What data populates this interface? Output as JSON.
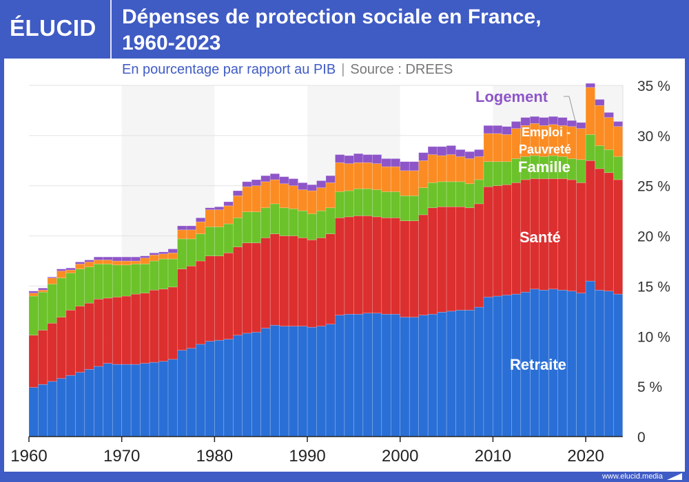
{
  "header": {
    "logo": "ÉLUCID",
    "title_line1": "Dépenses de protection sociale en France,",
    "title_line2": "1960-2023",
    "subtitle": "En pourcentage par rapport au PIB",
    "separator": "|",
    "source": "Source : DREES"
  },
  "footer": {
    "url": "www.elucid.media"
  },
  "chart_data": {
    "type": "bar",
    "stacked": true,
    "title": "Dépenses de protection sociale en France, 1960-2023",
    "subtitle": "En pourcentage par rapport au PIB",
    "xlabel": "",
    "ylabel": "",
    "ylim": [
      0,
      35
    ],
    "yticks": [
      "0",
      "5 %",
      "10 %",
      "15 %",
      "20 %",
      "25 %",
      "30 %",
      "35 %"
    ],
    "xticks": [
      "1960",
      "1970",
      "1980",
      "1990",
      "2000",
      "2010",
      "2020"
    ],
    "grid": true,
    "legend": "inline labels on the right",
    "x": [
      1960,
      1961,
      1962,
      1963,
      1964,
      1965,
      1966,
      1967,
      1968,
      1969,
      1970,
      1971,
      1972,
      1973,
      1974,
      1975,
      1976,
      1977,
      1978,
      1979,
      1980,
      1981,
      1982,
      1983,
      1984,
      1985,
      1986,
      1987,
      1988,
      1989,
      1990,
      1991,
      1992,
      1993,
      1994,
      1995,
      1996,
      1997,
      1998,
      1999,
      2000,
      2001,
      2002,
      2003,
      2004,
      2005,
      2006,
      2007,
      2008,
      2009,
      2010,
      2011,
      2012,
      2013,
      2014,
      2015,
      2016,
      2017,
      2018,
      2019,
      2020,
      2021,
      2022,
      2023
    ],
    "series": [
      {
        "name": "Retraite",
        "color": "#2a6fd6",
        "values": [
          4.9,
          5.2,
          5.5,
          5.8,
          6.1,
          6.4,
          6.7,
          7.0,
          7.3,
          7.2,
          7.2,
          7.2,
          7.3,
          7.4,
          7.5,
          7.7,
          8.6,
          8.8,
          9.2,
          9.5,
          9.6,
          9.7,
          10.1,
          10.3,
          10.4,
          10.8,
          11.1,
          11.0,
          11.0,
          11.0,
          10.9,
          11.0,
          11.2,
          12.1,
          12.2,
          12.2,
          12.3,
          12.3,
          12.2,
          12.2,
          11.9,
          11.9,
          12.1,
          12.2,
          12.4,
          12.5,
          12.6,
          12.6,
          12.9,
          13.9,
          14.0,
          14.1,
          14.2,
          14.4,
          14.7,
          14.6,
          14.7,
          14.6,
          14.5,
          14.3,
          15.5,
          14.6,
          14.5,
          14.2
        ]
      },
      {
        "name": "Santé",
        "color": "#dc2f2f",
        "values": [
          5.2,
          5.4,
          5.8,
          6.1,
          6.5,
          6.6,
          6.6,
          6.7,
          6.5,
          6.7,
          6.8,
          7.0,
          7.0,
          7.2,
          7.2,
          7.2,
          8.1,
          8.2,
          8.3,
          8.5,
          8.4,
          8.6,
          8.8,
          9.0,
          8.9,
          9.0,
          9.1,
          9.0,
          9.0,
          8.8,
          8.7,
          8.8,
          9.0,
          9.7,
          9.7,
          9.8,
          9.7,
          9.6,
          9.6,
          9.6,
          9.6,
          9.6,
          10.0,
          10.6,
          10.5,
          10.4,
          10.3,
          10.2,
          10.3,
          11.0,
          11.0,
          11.0,
          11.1,
          11.2,
          11.0,
          11.1,
          11.0,
          11.1,
          11.1,
          11.0,
          12.0,
          12.1,
          11.8,
          11.4
        ]
      },
      {
        "name": "Famille",
        "color": "#6cc22a",
        "values": [
          3.9,
          3.8,
          3.9,
          3.9,
          3.7,
          3.7,
          3.6,
          3.5,
          3.4,
          3.2,
          3.1,
          3.0,
          2.9,
          2.9,
          3.0,
          2.8,
          3.0,
          2.7,
          2.7,
          2.9,
          2.9,
          2.9,
          2.9,
          3.1,
          3.1,
          3.0,
          3.0,
          2.8,
          2.7,
          2.7,
          2.6,
          2.7,
          2.6,
          2.6,
          2.6,
          2.7,
          2.7,
          2.7,
          2.6,
          2.6,
          2.5,
          2.5,
          2.7,
          2.5,
          2.5,
          2.5,
          2.5,
          2.4,
          2.4,
          2.5,
          2.4,
          2.3,
          2.4,
          2.3,
          2.3,
          2.2,
          2.3,
          2.2,
          2.1,
          2.3,
          2.6,
          2.3,
          2.3,
          2.3
        ]
      },
      {
        "name": "Emploi - Pauvreté",
        "color": "#fb8c23",
        "values": [
          0.3,
          0.2,
          0.6,
          0.7,
          0.3,
          0.5,
          0.5,
          0.4,
          0.4,
          0.4,
          0.4,
          0.3,
          0.6,
          0.6,
          0.5,
          0.6,
          0.9,
          0.9,
          1.2,
          1.7,
          1.7,
          1.8,
          2.2,
          2.5,
          2.6,
          2.6,
          2.4,
          2.4,
          2.3,
          2.1,
          2.3,
          2.3,
          2.5,
          2.9,
          2.7,
          2.6,
          2.6,
          2.6,
          2.5,
          2.5,
          2.5,
          2.5,
          2.7,
          2.8,
          2.6,
          2.7,
          2.5,
          2.5,
          2.3,
          2.8,
          2.8,
          2.7,
          3.0,
          3.1,
          3.2,
          3.1,
          3.1,
          3.1,
          3.2,
          3.1,
          4.7,
          4.0,
          3.2,
          3.0
        ]
      },
      {
        "name": "Logement",
        "color": "#8e55c8",
        "values": [
          0.2,
          0.2,
          0.1,
          0.2,
          0.2,
          0.2,
          0.2,
          0.3,
          0.3,
          0.4,
          0.4,
          0.4,
          0.2,
          0.2,
          0.2,
          0.4,
          0.4,
          0.4,
          0.4,
          0.2,
          0.3,
          0.4,
          0.5,
          0.5,
          0.6,
          0.6,
          0.6,
          0.7,
          0.7,
          0.7,
          0.6,
          0.7,
          0.7,
          0.8,
          0.8,
          0.9,
          0.8,
          0.9,
          0.8,
          0.8,
          0.9,
          0.9,
          0.8,
          0.8,
          0.9,
          0.9,
          0.7,
          0.7,
          0.7,
          0.8,
          0.8,
          0.8,
          0.7,
          0.8,
          0.7,
          0.8,
          0.8,
          0.8,
          0.6,
          0.6,
          0.4,
          0.6,
          0.5,
          0.5
        ]
      }
    ],
    "labels": {
      "retraite": "Retraite",
      "sante": "Santé",
      "famille": "Famille",
      "emploi_1": "Emploi -",
      "emploi_2": "Pauvreté",
      "logement": "Logement"
    }
  }
}
